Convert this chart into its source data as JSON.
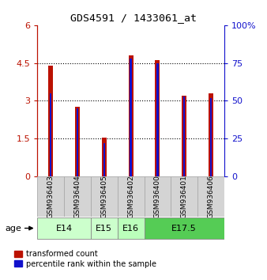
{
  "title": "GDS4591 / 1433061_at",
  "samples": [
    "GSM936403",
    "GSM936404",
    "GSM936405",
    "GSM936402",
    "GSM936400",
    "GSM936401",
    "GSM936406"
  ],
  "transformed_count": [
    4.4,
    2.75,
    1.55,
    4.8,
    4.6,
    3.2,
    3.3
  ],
  "percentile_rank": [
    55,
    45,
    22,
    78,
    75,
    53,
    52
  ],
  "age_groups": [
    {
      "label": "E14",
      "start": 0,
      "end": 2,
      "color": "#ccffcc"
    },
    {
      "label": "E15",
      "start": 2,
      "end": 3,
      "color": "#ccffcc"
    },
    {
      "label": "E16",
      "start": 3,
      "end": 4,
      "color": "#bbffbb"
    },
    {
      "label": "E17.5",
      "start": 4,
      "end": 7,
      "color": "#55cc55"
    }
  ],
  "left_ylim": [
    0,
    6
  ],
  "left_yticks": [
    0,
    1.5,
    3,
    4.5,
    6
  ],
  "left_yticklabels": [
    "0",
    "1.5",
    "3",
    "4.5",
    "6"
  ],
  "right_ylim": [
    0,
    100
  ],
  "right_yticks": [
    0,
    25,
    50,
    75,
    100
  ],
  "right_yticklabels": [
    "0",
    "25",
    "50",
    "75",
    "100%"
  ],
  "bar_color_red": "#bb1100",
  "bar_color_blue": "#1111cc",
  "grid_color": "black",
  "bg_color": "#d4d4d4",
  "bar_width": 0.18,
  "blue_bar_width": 0.07,
  "legend_red": "transformed count",
  "legend_blue": "percentile rank within the sample"
}
